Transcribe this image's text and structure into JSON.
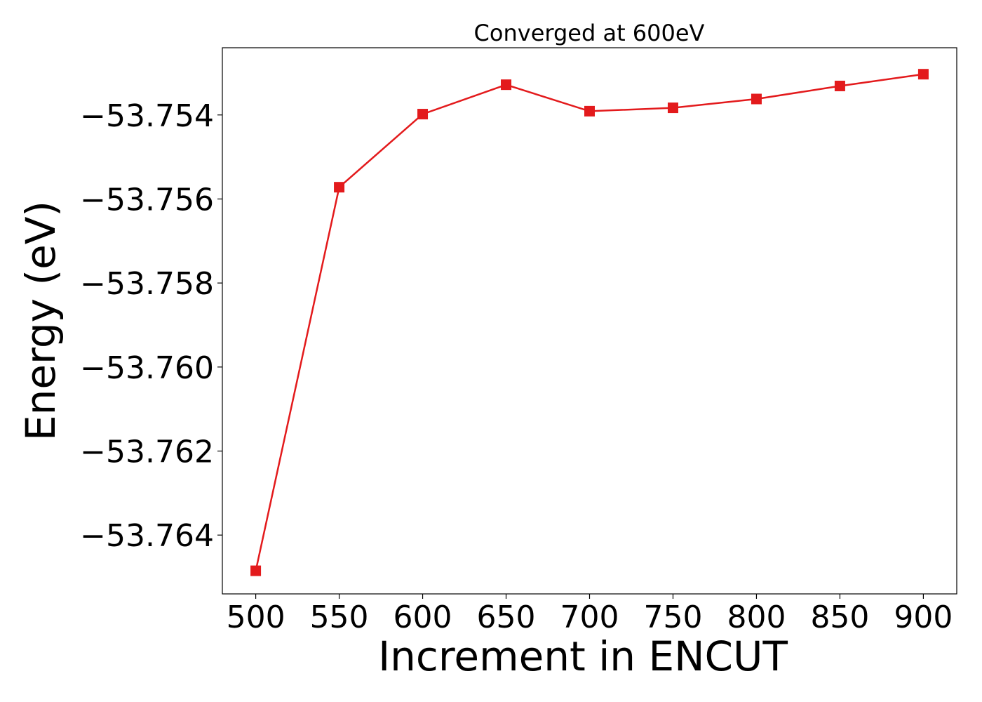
{
  "chart_data": {
    "type": "line",
    "title": "Converged at 600eV",
    "xlabel": "Increment in ENCUT",
    "ylabel": "Energy (eV)",
    "x": [
      500,
      550,
      600,
      650,
      700,
      750,
      800,
      850,
      900
    ],
    "x_ticks": [
      500,
      550,
      600,
      650,
      700,
      750,
      800,
      850,
      900
    ],
    "y_ticks": [
      -53.754,
      -53.756,
      -53.758,
      -53.76,
      -53.762,
      -53.764
    ],
    "y_tick_labels": [
      "−53.754",
      "−53.756",
      "−53.758",
      "−53.760",
      "−53.762",
      "−53.764"
    ],
    "xlim": [
      480,
      920
    ],
    "ylim": [
      -53.7654,
      -53.7524
    ],
    "grid": false,
    "series": [
      {
        "color": "#e31a1c",
        "marker": "square",
        "values": [
          -53.76485,
          -53.75572,
          -53.75398,
          -53.75328,
          -53.75391,
          -53.75383,
          -53.75362,
          -53.75331,
          -53.75303
        ]
      }
    ]
  }
}
